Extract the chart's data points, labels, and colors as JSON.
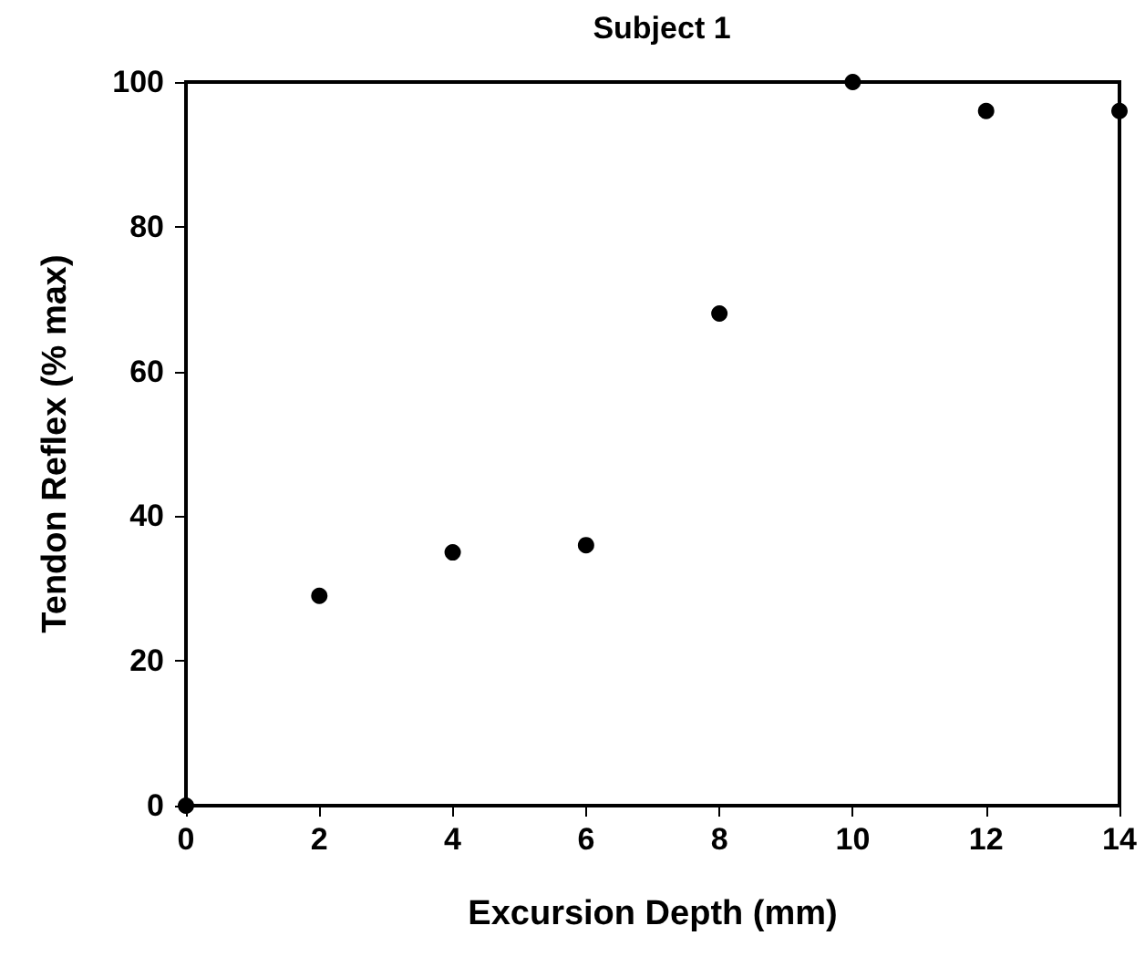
{
  "chart_data": {
    "type": "scatter",
    "title": "Subject 1",
    "xlabel": "Excursion Depth (mm)",
    "ylabel": "Tendon Reflex (% max)",
    "x": [
      0,
      2,
      4,
      6,
      8,
      10,
      12,
      14
    ],
    "series": [
      {
        "color": "#000000",
        "values": [
          0,
          29,
          35,
          36,
          68,
          100,
          96,
          96
        ]
      }
    ],
    "xlim": [
      0,
      14
    ],
    "xticks": [
      0,
      2,
      4,
      6,
      8,
      10,
      12,
      14
    ],
    "ylim": [
      0,
      100
    ],
    "yticks": [
      0,
      20,
      40,
      60,
      80,
      100
    ],
    "grid": false,
    "marker": "circle"
  }
}
